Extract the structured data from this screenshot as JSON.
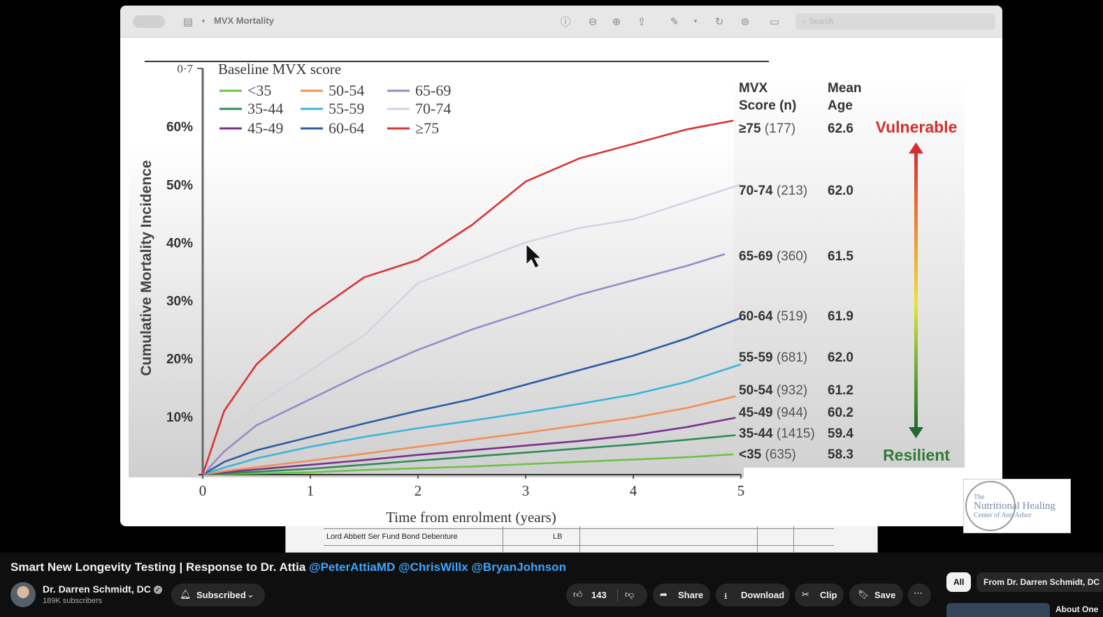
{
  "viewer": {
    "window_title": "MVX Mortality",
    "search_placeholder": "Search"
  },
  "chart_data": {
    "type": "line",
    "legend_title": "Baseline MVX score",
    "xlabel": "Time from enrolment (years)",
    "ylabel": "Cumulative Mortality Incidence",
    "xlim": [
      0,
      5
    ],
    "ylim": [
      0,
      0.7
    ],
    "x_ticks": [
      "0",
      "1",
      "2",
      "3",
      "4",
      "5"
    ],
    "y_ticks": [
      "10%",
      "20%",
      "30%",
      "40%",
      "50%",
      "60%"
    ],
    "y_top_tick": "0·7",
    "legend": [
      "<35",
      "35-44",
      "45-49",
      "50-54",
      "55-59",
      "60-64",
      "65-69",
      "70-74",
      "≥75"
    ],
    "series": [
      {
        "name": "<35",
        "color": "#6cc24a",
        "x": [
          0,
          0.2,
          0.5,
          1,
          1.5,
          2,
          2.5,
          3,
          3.5,
          4,
          4.5,
          4.93
        ],
        "values": [
          0,
          0.001,
          0.002,
          0.004,
          0.008,
          0.011,
          0.014,
          0.018,
          0.022,
          0.026,
          0.03,
          0.035
        ]
      },
      {
        "name": "35-44",
        "color": "#2e8b57",
        "x": [
          0,
          0.2,
          0.5,
          1,
          1.5,
          2,
          2.5,
          3,
          3.5,
          4,
          4.5,
          4.95
        ],
        "values": [
          0,
          0.002,
          0.005,
          0.01,
          0.017,
          0.024,
          0.031,
          0.038,
          0.045,
          0.052,
          0.06,
          0.068
        ]
      },
      {
        "name": "45-49",
        "color": "#7b2f8e",
        "x": [
          0,
          0.2,
          0.5,
          1,
          1.5,
          2,
          2.5,
          3,
          3.5,
          4,
          4.5,
          4.95
        ],
        "values": [
          0,
          0.004,
          0.009,
          0.017,
          0.025,
          0.034,
          0.042,
          0.05,
          0.058,
          0.068,
          0.082,
          0.098
        ]
      },
      {
        "name": "50-54",
        "color": "#f0905a",
        "x": [
          0,
          0.2,
          0.5,
          1,
          1.5,
          2,
          2.5,
          3,
          3.5,
          4,
          4.5,
          4.95
        ],
        "values": [
          0,
          0.006,
          0.013,
          0.024,
          0.036,
          0.048,
          0.06,
          0.072,
          0.085,
          0.098,
          0.115,
          0.135
        ]
      },
      {
        "name": "55-59",
        "color": "#3cb4d8",
        "x": [
          0,
          0.2,
          0.5,
          1,
          1.5,
          2,
          2.5,
          3,
          3.5,
          4,
          4.5,
          5
        ],
        "values": [
          0,
          0.012,
          0.028,
          0.048,
          0.065,
          0.08,
          0.093,
          0.107,
          0.122,
          0.138,
          0.16,
          0.19
        ]
      },
      {
        "name": "60-64",
        "color": "#2d5ba3",
        "x": [
          0,
          0.2,
          0.5,
          1,
          1.5,
          2,
          2.5,
          3,
          3.5,
          4,
          4.5,
          5
        ],
        "values": [
          0,
          0.022,
          0.042,
          0.065,
          0.088,
          0.11,
          0.13,
          0.155,
          0.18,
          0.205,
          0.235,
          0.27
        ]
      },
      {
        "name": "65-69",
        "color": "#9b8ac4",
        "x": [
          0,
          0.2,
          0.5,
          1,
          1.5,
          2,
          2.5,
          3,
          3.5,
          4,
          4.5,
          4.85
        ],
        "values": [
          0,
          0.04,
          0.085,
          0.13,
          0.175,
          0.215,
          0.25,
          0.28,
          0.31,
          0.335,
          0.36,
          0.38
        ]
      },
      {
        "name": "70-74",
        "color": "#d3d3e3",
        "x": [
          0,
          0.2,
          0.5,
          1,
          1.5,
          2,
          2.5,
          3,
          3.5,
          4,
          4.5,
          5
        ],
        "values": [
          0,
          0.06,
          0.12,
          0.18,
          0.24,
          0.33,
          0.365,
          0.4,
          0.425,
          0.44,
          0.47,
          0.5
        ]
      },
      {
        "name": "≥75",
        "color": "#dc3232",
        "x": [
          0,
          0.2,
          0.5,
          1,
          1.5,
          2,
          2.5,
          3,
          3.5,
          4,
          4.5,
          4.93
        ],
        "values": [
          0,
          0.11,
          0.19,
          0.275,
          0.34,
          0.37,
          0.43,
          0.505,
          0.545,
          0.57,
          0.595,
          0.61
        ]
      }
    ]
  },
  "table": {
    "header_score": [
      "MVX",
      "Score (n)"
    ],
    "header_age": [
      "Mean",
      "Age"
    ],
    "rows": [
      {
        "group": "≥75",
        "n": "(177)",
        "age": "62.6"
      },
      {
        "group": "70-74",
        "n": "(213)",
        "age": "62.0"
      },
      {
        "group": "65-69",
        "n": "(360)",
        "age": "61.5"
      },
      {
        "group": "60-64",
        "n": "(519)",
        "age": "61.9"
      },
      {
        "group": "55-59",
        "n": "(681)",
        "age": "62.0"
      },
      {
        "group": "50-54",
        "n": "(932)",
        "age": "61.2"
      },
      {
        "group": "45-49",
        "n": "(944)",
        "age": "60.2"
      },
      {
        "group": "35-44",
        "n": "(1415)",
        "age": "59.4"
      },
      {
        "group": "<35",
        "n": "(635)",
        "age": "58.3"
      }
    ],
    "vulnerable_label": "Vulnerable",
    "resilient_label": "Resilient"
  },
  "background_doc": {
    "row_text": "Lord Abbett Ser Fund Bond Debenture",
    "row_code": "LB"
  },
  "logo": {
    "line1": "The",
    "line2": "Nutritional Healing",
    "line3": "Center of Ann Arbor"
  },
  "video": {
    "title": "Smart New Longevity Testing | Response to Dr. Attia ",
    "tags": [
      "@PeterAttiaMD",
      "@ChrisWillx",
      "@BryanJohnson"
    ],
    "channel": "Dr. Darren Schmidt, DC",
    "subscribers": "189K subscribers",
    "subscribed_label": "Subscribed",
    "likes": "143",
    "share_label": "Share",
    "download_label": "Download",
    "clip_label": "Clip",
    "save_label": "Save"
  },
  "sidebar": {
    "chips": [
      "All",
      "From Dr. Darren Schmidt, DC"
    ],
    "next_title": "About One"
  },
  "colors": {
    "vulnerable": "#d32f2f",
    "resilient": "#2e7d32",
    "link": "#3ea6ff"
  }
}
